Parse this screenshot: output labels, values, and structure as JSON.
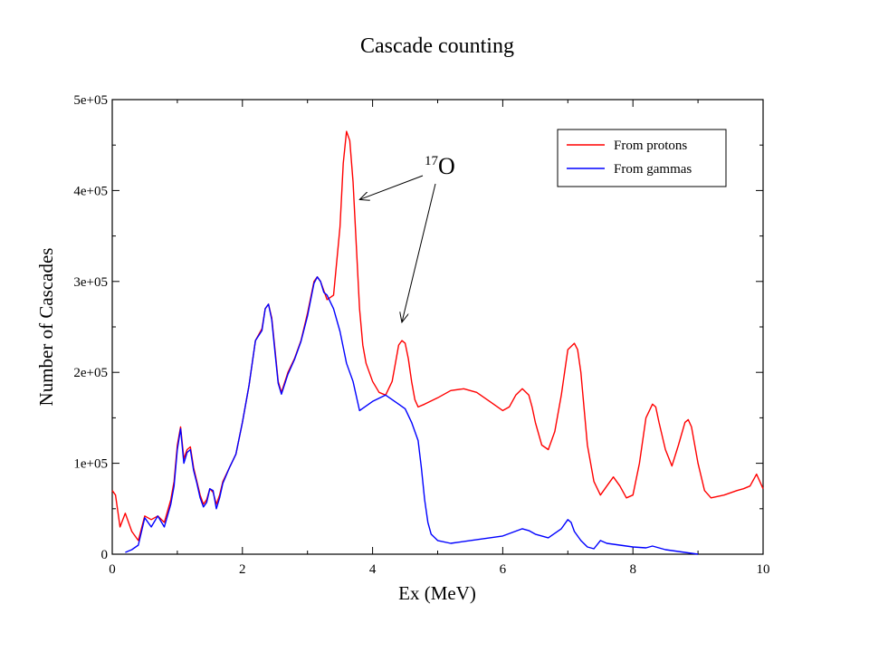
{
  "chart_data": {
    "type": "line",
    "title": "Cascade counting",
    "xlabel": "Ex (MeV)",
    "ylabel": "Number of Cascades",
    "xlim": [
      0,
      10
    ],
    "ylim": [
      0,
      500000
    ],
    "xticks": [
      0,
      2,
      4,
      6,
      8,
      10
    ],
    "xtick_labels": [
      "0",
      "2",
      "4",
      "6",
      "8",
      "10"
    ],
    "yticks": [
      0,
      100000,
      200000,
      300000,
      400000,
      500000
    ],
    "ytick_labels": [
      "0",
      "1e+05",
      "2e+05",
      "3e+05",
      "4e+05",
      "5e+05"
    ],
    "grid": false,
    "legend_position": "top-right",
    "annotation": {
      "superscript": "17",
      "text": "O",
      "points_to": [
        [
          3.8,
          390000
        ],
        [
          4.45,
          255000
        ]
      ],
      "origin": [
        4.95,
        415000
      ]
    },
    "series": [
      {
        "name": "From protons",
        "color": "#ff0000",
        "x": [
          0.0,
          0.05,
          0.12,
          0.2,
          0.3,
          0.4,
          0.5,
          0.6,
          0.7,
          0.8,
          0.9,
          0.95,
          1.0,
          1.05,
          1.1,
          1.15,
          1.2,
          1.25,
          1.3,
          1.35,
          1.4,
          1.45,
          1.5,
          1.55,
          1.6,
          1.65,
          1.7,
          1.8,
          1.9,
          2.0,
          2.1,
          2.2,
          2.3,
          2.35,
          2.4,
          2.45,
          2.5,
          2.55,
          2.6,
          2.7,
          2.8,
          2.9,
          3.0,
          3.1,
          3.15,
          3.2,
          3.25,
          3.3,
          3.4,
          3.5,
          3.55,
          3.6,
          3.65,
          3.7,
          3.75,
          3.8,
          3.85,
          3.9,
          4.0,
          4.1,
          4.2,
          4.3,
          4.35,
          4.4,
          4.45,
          4.5,
          4.55,
          4.6,
          4.65,
          4.7,
          4.8,
          5.0,
          5.2,
          5.4,
          5.6,
          5.8,
          6.0,
          6.1,
          6.2,
          6.3,
          6.4,
          6.45,
          6.5,
          6.6,
          6.7,
          6.8,
          6.9,
          7.0,
          7.1,
          7.15,
          7.2,
          7.25,
          7.3,
          7.4,
          7.5,
          7.6,
          7.7,
          7.8,
          7.9,
          8.0,
          8.1,
          8.2,
          8.3,
          8.35,
          8.4,
          8.5,
          8.6,
          8.7,
          8.8,
          8.85,
          8.9,
          9.0,
          9.1,
          9.2,
          9.4,
          9.6,
          9.7,
          9.8,
          9.9,
          10.0
        ],
        "values": [
          70000,
          65000,
          30000,
          45000,
          25000,
          15000,
          42000,
          38000,
          42000,
          35000,
          60000,
          80000,
          120000,
          140000,
          105000,
          115000,
          118000,
          95000,
          80000,
          65000,
          55000,
          60000,
          72000,
          68000,
          55000,
          65000,
          80000,
          95000,
          110000,
          145000,
          185000,
          235000,
          248000,
          270000,
          275000,
          260000,
          225000,
          190000,
          178000,
          200000,
          215000,
          235000,
          265000,
          300000,
          305000,
          300000,
          290000,
          280000,
          285000,
          360000,
          430000,
          465000,
          455000,
          410000,
          340000,
          270000,
          230000,
          210000,
          190000,
          178000,
          175000,
          190000,
          210000,
          230000,
          235000,
          232000,
          215000,
          190000,
          170000,
          162000,
          165000,
          172000,
          180000,
          182000,
          178000,
          168000,
          158000,
          162000,
          175000,
          182000,
          175000,
          162000,
          145000,
          120000,
          115000,
          135000,
          175000,
          225000,
          232000,
          225000,
          200000,
          160000,
          120000,
          80000,
          65000,
          75000,
          85000,
          75000,
          62000,
          65000,
          100000,
          150000,
          165000,
          162000,
          145000,
          115000,
          97000,
          120000,
          145000,
          148000,
          140000,
          100000,
          70000,
          62000,
          65000,
          70000,
          72000,
          75000,
          88000,
          72000
        ]
      },
      {
        "name": "From gammas",
        "color": "#0000ff",
        "x": [
          0.2,
          0.3,
          0.4,
          0.5,
          0.6,
          0.7,
          0.8,
          0.9,
          0.95,
          1.0,
          1.05,
          1.1,
          1.15,
          1.2,
          1.25,
          1.3,
          1.35,
          1.4,
          1.45,
          1.5,
          1.55,
          1.6,
          1.65,
          1.7,
          1.8,
          1.9,
          2.0,
          2.1,
          2.2,
          2.3,
          2.35,
          2.4,
          2.45,
          2.5,
          2.55,
          2.6,
          2.7,
          2.8,
          2.9,
          3.0,
          3.1,
          3.15,
          3.2,
          3.25,
          3.3,
          3.4,
          3.5,
          3.6,
          3.7,
          3.8,
          4.0,
          4.2,
          4.4,
          4.5,
          4.6,
          4.7,
          4.75,
          4.8,
          4.85,
          4.9,
          5.0,
          5.2,
          5.5,
          6.0,
          6.3,
          6.4,
          6.5,
          6.7,
          6.9,
          7.0,
          7.05,
          7.1,
          7.2,
          7.3,
          7.4,
          7.5,
          7.6,
          7.8,
          8.0,
          8.2,
          8.3,
          8.5,
          8.7,
          8.9,
          9.0
        ],
        "values": [
          2000,
          5000,
          10000,
          40000,
          30000,
          42000,
          30000,
          55000,
          75000,
          115000,
          138000,
          100000,
          112000,
          115000,
          92000,
          78000,
          62000,
          52000,
          57000,
          72000,
          70000,
          50000,
          62000,
          78000,
          95000,
          110000,
          145000,
          185000,
          235000,
          246000,
          270000,
          275000,
          258000,
          222000,
          188000,
          176000,
          198000,
          214000,
          234000,
          262000,
          298000,
          305000,
          300000,
          288000,
          285000,
          270000,
          245000,
          210000,
          190000,
          158000,
          168000,
          175000,
          165000,
          160000,
          145000,
          125000,
          95000,
          60000,
          35000,
          22000,
          15000,
          12000,
          15000,
          20000,
          28000,
          26000,
          22000,
          18000,
          28000,
          38000,
          35000,
          25000,
          15000,
          8000,
          6000,
          15000,
          12000,
          10000,
          8000,
          7000,
          9000,
          5000,
          3000,
          1000,
          0
        ]
      }
    ]
  }
}
